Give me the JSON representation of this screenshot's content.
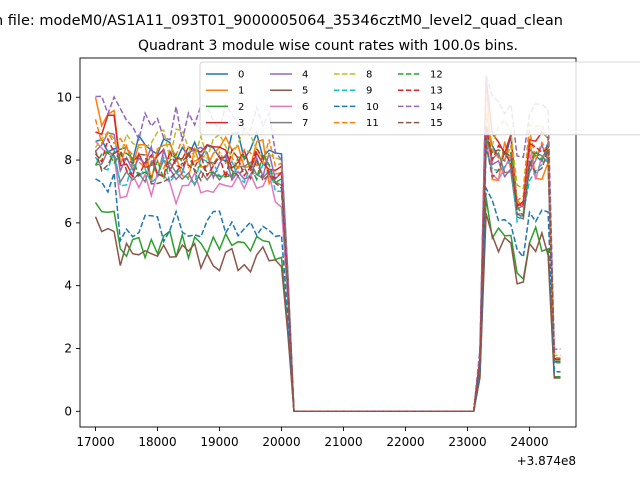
{
  "chart_data": {
    "type": "line",
    "suptitle": "n file: modeM0/AS1A11_093T01_9000005064_35346cztM0_level2_quad_clean",
    "title": "Quadrant 3 module wise count rates with 100.0s bins.",
    "xlabel": "",
    "ylabel": "",
    "x_offset_label": "+3.874e8",
    "xlim": [
      16750,
      24750
    ],
    "ylim": [
      -0.5,
      11.25
    ],
    "xticks": [
      17000,
      18000,
      19000,
      20000,
      21000,
      22000,
      23000,
      24000
    ],
    "yticks": [
      0,
      2,
      4,
      6,
      8,
      10
    ],
    "grid": false,
    "legend_location": "top-center",
    "legend_columns": 4,
    "series": [
      {
        "name": "0",
        "color": "#1f77b4",
        "style": "solid",
        "base": 8.4,
        "amp": 0.45,
        "early": 8.6,
        "tail": 8.2,
        "late": 8.3,
        "peak": 9.1
      },
      {
        "name": "1",
        "color": "#ff7f0e",
        "style": "solid",
        "base": 8.0,
        "amp": 0.7,
        "early": 9.7,
        "tail": 7.6,
        "late": 8.0,
        "peak": 10.7
      },
      {
        "name": "2",
        "color": "#2ca02c",
        "style": "solid",
        "base": 5.3,
        "amp": 0.4,
        "early": 6.3,
        "tail": 4.9,
        "late": 5.5,
        "peak": 6.8
      },
      {
        "name": "3",
        "color": "#d62728",
        "style": "solid",
        "base": 8.0,
        "amp": 0.45,
        "early": 9.2,
        "tail": 7.8,
        "late": 8.4,
        "peak": 10.6
      },
      {
        "name": "4",
        "color": "#9467bd",
        "style": "solid",
        "base": 7.9,
        "amp": 0.5,
        "early": 8.4,
        "tail": 7.6,
        "late": 8.0,
        "peak": 9.0
      },
      {
        "name": "5",
        "color": "#8c564b",
        "style": "solid",
        "base": 4.9,
        "amp": 0.45,
        "early": 6.1,
        "tail": 4.6,
        "late": 5.3,
        "peak": 6.3
      },
      {
        "name": "6",
        "color": "#e377c2",
        "style": "solid",
        "base": 7.1,
        "amp": 0.45,
        "early": 8.3,
        "tail": 6.5,
        "late": 7.8,
        "peak": 8.6
      },
      {
        "name": "7",
        "color": "#7f7f7f",
        "style": "solid",
        "base": 7.6,
        "amp": 0.4,
        "early": 8.2,
        "tail": 7.2,
        "late": 7.9,
        "peak": 8.7
      },
      {
        "name": "8",
        "color": "#bcbd22",
        "style": "dashed",
        "base": 8.5,
        "amp": 0.45,
        "early": 8.6,
        "tail": 8.0,
        "late": 8.9,
        "peak": 9.6
      },
      {
        "name": "9",
        "color": "#17becf",
        "style": "dashed",
        "base": 7.6,
        "amp": 0.45,
        "early": 8.1,
        "tail": 7.0,
        "late": 7.7,
        "peak": 8.3
      },
      {
        "name": "10",
        "color": "#1f77b4",
        "style": "dashed",
        "base": 5.9,
        "amp": 0.45,
        "early": 7.2,
        "tail": 5.6,
        "late": 6.3,
        "peak": 7.1
      },
      {
        "name": "11",
        "color": "#ff7f0e",
        "style": "dashed",
        "base": 8.2,
        "amp": 0.45,
        "early": 8.9,
        "tail": 7.9,
        "late": 8.5,
        "peak": 9.5
      },
      {
        "name": "12",
        "color": "#2ca02c",
        "style": "dashed",
        "base": 7.8,
        "amp": 0.4,
        "early": 8.1,
        "tail": 7.4,
        "late": 8.0,
        "peak": 8.7
      },
      {
        "name": "13",
        "color": "#d62728",
        "style": "dashed",
        "base": 7.9,
        "amp": 0.45,
        "early": 8.3,
        "tail": 7.6,
        "late": 8.3,
        "peak": 9.1
      },
      {
        "name": "14",
        "color": "#9467bd",
        "style": "dashed",
        "base": 9.2,
        "amp": 0.55,
        "early": 9.9,
        "tail": 8.0,
        "late": 9.9,
        "peak": 10.7
      },
      {
        "name": "15",
        "color": "#8c564b",
        "style": "dashed",
        "base": 7.7,
        "amp": 0.45,
        "early": 8.0,
        "tail": 7.1,
        "late": 7.9,
        "peak": 8.5
      }
    ]
  }
}
